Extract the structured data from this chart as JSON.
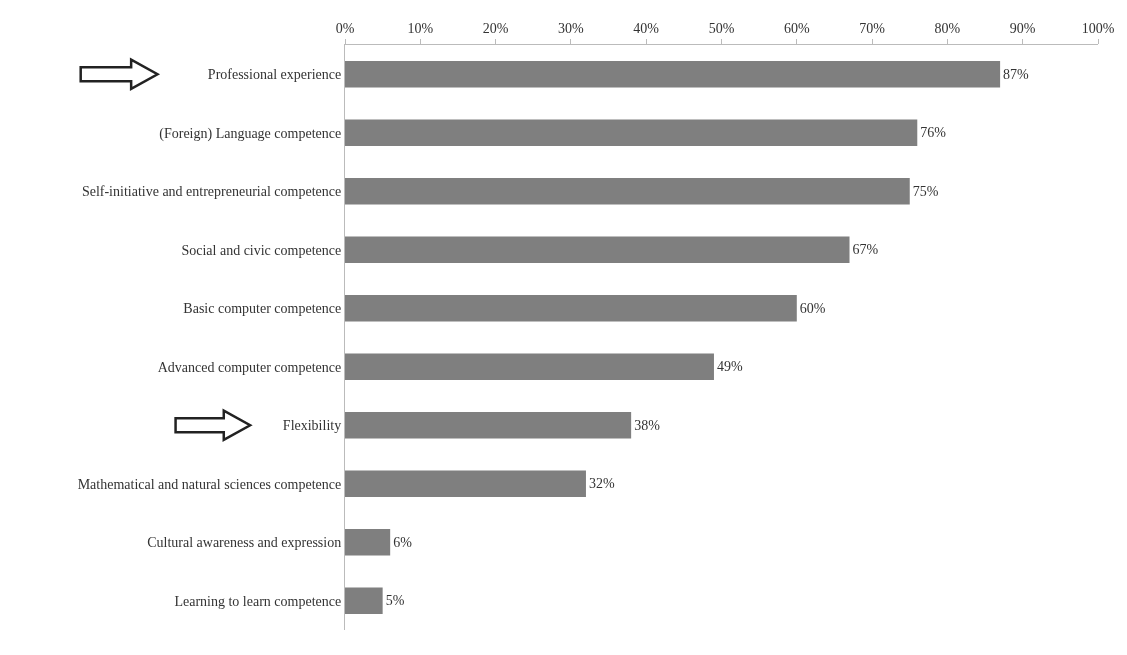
{
  "chart_data": {
    "type": "bar",
    "orientation": "horizontal",
    "categories": [
      "Professional experience",
      "(Foreign) Language competence",
      "Self-initiative and entrepreneurial competence",
      "Social and civic competence",
      "Basic computer competence",
      "Advanced computer competence",
      "Flexibility",
      "Mathematical and natural sciences competence",
      "Cultural awareness and expression",
      "Learning to learn competence"
    ],
    "values": [
      87,
      76,
      75,
      67,
      60,
      49,
      38,
      32,
      6,
      5
    ],
    "value_labels": [
      "87%",
      "76%",
      "75%",
      "67%",
      "60%",
      "49%",
      "38%",
      "32%",
      "6%",
      "5%"
    ],
    "color": "#7f7f7f",
    "xlim": [
      0,
      100
    ],
    "xticks": [
      {
        "value": 0,
        "label": "0%"
      },
      {
        "value": 10,
        "label": "10%"
      },
      {
        "value": 20,
        "label": "20%"
      },
      {
        "value": 30,
        "label": "30%"
      },
      {
        "value": 40,
        "label": "40%"
      },
      {
        "value": 50,
        "label": "50%"
      },
      {
        "value": 60,
        "label": "60%"
      },
      {
        "value": 70,
        "label": "70%"
      },
      {
        "value": 80,
        "label": "80%"
      },
      {
        "value": 90,
        "label": "90%"
      },
      {
        "value": 100,
        "label": "100%"
      }
    ],
    "legend": false
  }
}
